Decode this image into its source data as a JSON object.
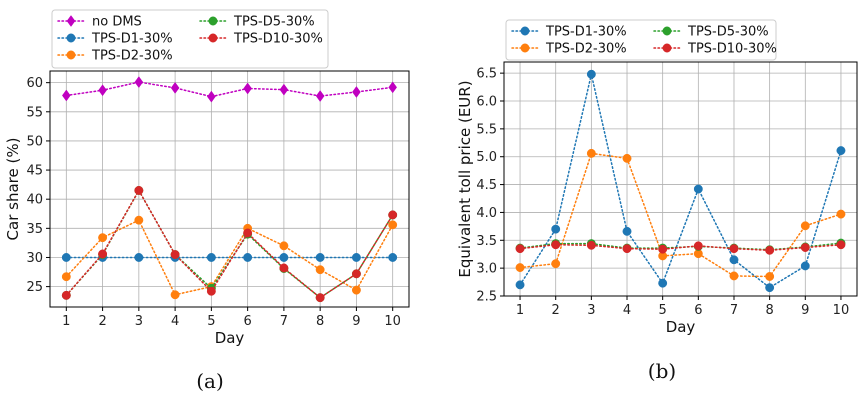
{
  "chart_data": [
    {
      "type": "line",
      "caption": "(a)",
      "xlabel": "Day",
      "ylabel": "Car share (%)",
      "x": [
        1,
        2,
        3,
        4,
        5,
        6,
        7,
        8,
        9,
        10
      ],
      "ylim": [
        21.5,
        62
      ],
      "yticks": [
        25,
        30,
        35,
        40,
        45,
        50,
        55,
        60
      ],
      "grid": true,
      "legend": "top-left, outside above plot, 2 columns",
      "series": [
        {
          "name": "no DMS",
          "color": "#c000c0",
          "marker": "diamond",
          "values": [
            57.8,
            58.7,
            60.1,
            59.1,
            57.6,
            59.0,
            58.8,
            57.7,
            58.4,
            59.2
          ]
        },
        {
          "name": "TPS-D1-30%",
          "color": "#1f77b4",
          "marker": "circle",
          "values": [
            30,
            30,
            30,
            30,
            30,
            30,
            30,
            30,
            30,
            30
          ]
        },
        {
          "name": "TPS-D2-30%",
          "color": "#ff7f0e",
          "marker": "circle",
          "values": [
            26.7,
            33.4,
            36.4,
            23.6,
            25.0,
            35.0,
            32.0,
            27.9,
            24.4,
            35.6
          ]
        },
        {
          "name": "TPS-D5-30%",
          "color": "#2ca02c",
          "marker": "circle",
          "values": [
            23.5,
            30.5,
            41.5,
            30.5,
            24.7,
            34.0,
            28.1,
            23.1,
            27.2,
            37.3
          ]
        },
        {
          "name": "TPS-D10-30%",
          "color": "#d62728",
          "marker": "circle",
          "values": [
            23.5,
            30.6,
            41.5,
            30.5,
            24.2,
            34.2,
            28.2,
            23.1,
            27.2,
            37.3
          ]
        }
      ]
    },
    {
      "type": "line",
      "caption": "(b)",
      "xlabel": "Day",
      "ylabel": "Equivalent toll price (EUR)",
      "x": [
        1,
        2,
        3,
        4,
        5,
        6,
        7,
        8,
        9,
        10
      ],
      "ylim": [
        2.5,
        6.7
      ],
      "yticks": [
        2.5,
        3.0,
        3.5,
        4.0,
        4.5,
        5.0,
        5.5,
        6.0,
        6.5
      ],
      "grid": true,
      "legend": "top, outside above plot, 2 columns",
      "series": [
        {
          "name": "TPS-D1-30%",
          "color": "#1f77b4",
          "marker": "circle",
          "values": [
            2.7,
            3.7,
            6.48,
            3.66,
            2.73,
            4.42,
            3.15,
            2.65,
            3.04,
            5.11
          ]
        },
        {
          "name": "TPS-D2-30%",
          "color": "#ff7f0e",
          "marker": "circle",
          "values": [
            3.01,
            3.08,
            5.06,
            4.97,
            3.22,
            3.26,
            2.86,
            2.85,
            3.76,
            3.97
          ]
        },
        {
          "name": "TPS-D5-30%",
          "color": "#2ca02c",
          "marker": "circle",
          "values": [
            3.36,
            3.44,
            3.44,
            3.36,
            3.36,
            3.39,
            3.36,
            3.33,
            3.38,
            3.45
          ]
        },
        {
          "name": "TPS-D10-30%",
          "color": "#d62728",
          "marker": "circle",
          "values": [
            3.35,
            3.42,
            3.41,
            3.35,
            3.34,
            3.4,
            3.35,
            3.32,
            3.37,
            3.42
          ]
        }
      ]
    }
  ]
}
